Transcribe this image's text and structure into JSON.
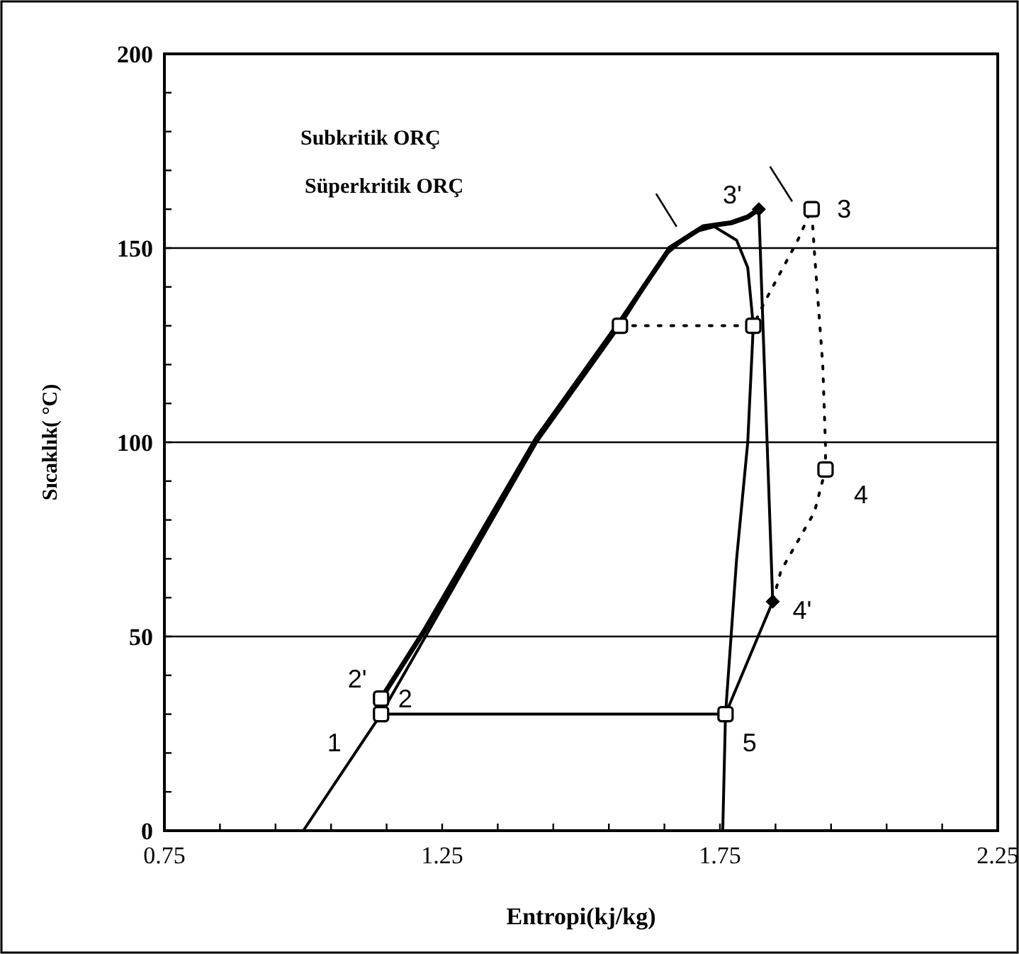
{
  "chart_data": {
    "type": "line",
    "xlabel": "Entropi(kj/kg)",
    "ylabel": "Sıcaklık( °C)",
    "xlim": [
      0.75,
      2.25
    ],
    "ylim": [
      0,
      200
    ],
    "xticks": [
      0.75,
      {
        "value": 0.85,
        "label": null
      },
      {
        "value": 0.95,
        "label": null
      },
      {
        "value": 1.05,
        "label": null
      },
      {
        "value": 1.15,
        "label": null
      },
      1.25,
      {
        "value": 1.35,
        "label": null
      },
      {
        "value": 1.45,
        "label": null
      },
      {
        "value": 1.55,
        "label": null
      },
      {
        "value": 1.65,
        "label": null
      },
      1.75,
      {
        "value": 1.85,
        "label": null
      },
      {
        "value": 1.95,
        "label": null
      },
      {
        "value": 2.05,
        "label": null
      },
      {
        "value": 2.15,
        "label": null
      },
      2.25
    ],
    "yticks": [
      0,
      {
        "value": 10,
        "label": null
      },
      {
        "value": 20,
        "label": null
      },
      {
        "value": 30,
        "label": null
      },
      {
        "value": 40,
        "label": null
      },
      50,
      {
        "value": 60,
        "label": null
      },
      {
        "value": 70,
        "label": null
      },
      {
        "value": 80,
        "label": null
      },
      {
        "value": 90,
        "label": null
      },
      100,
      {
        "value": 110,
        "label": null
      },
      {
        "value": 120,
        "label": null
      },
      {
        "value": 130,
        "label": null
      },
      {
        "value": 140,
        "label": null
      },
      150,
      {
        "value": 160,
        "label": null
      },
      {
        "value": 170,
        "label": null
      },
      {
        "value": 180,
        "label": null
      },
      {
        "value": 190,
        "label": null
      },
      200
    ],
    "grid": "y",
    "series": [
      {
        "color": "#000000",
        "line_style": "solid",
        "x": [
          1.0,
          1.14,
          1.22,
          1.42,
          1.57,
          1.65,
          1.7,
          1.74,
          1.78,
          1.8,
          1.81,
          1.8,
          1.78,
          1.76,
          1.755
        ],
        "values": [
          0,
          30,
          50,
          100,
          130,
          148,
          154,
          155.5,
          152,
          145,
          130,
          100,
          70,
          30,
          0
        ]
      },
      {
        "color": "#000000",
        "line_style": "solid",
        "x": [
          1.14,
          1.22,
          1.42,
          1.57,
          1.66,
          1.72,
          1.77,
          1.8,
          1.82
        ],
        "values": [
          34,
          52,
          101,
          131,
          150,
          155.5,
          156.5,
          158,
          160
        ]
      },
      {
        "color": "#000000",
        "line_style": "solid",
        "x": [
          1.82,
          1.845,
          1.76,
          1.14,
          1.14
        ],
        "values": [
          160,
          59,
          30,
          30,
          34
        ]
      },
      {
        "color": "#000000",
        "line_style": "dotted",
        "x": [
          1.57,
          1.81,
          1.83,
          1.89,
          1.915,
          1.92,
          1.935,
          1.94,
          1.94,
          1.92,
          1.86,
          1.845
        ],
        "values": [
          130,
          130,
          136,
          152,
          160,
          149,
          120,
          99,
          93,
          82,
          67,
          59
        ]
      },
      {
        "type": "scatter",
        "color": "#000000",
        "marker": "square",
        "x": [
          1.14,
          1.14,
          1.57,
          1.81,
          1.915,
          1.94,
          1.76
        ],
        "values": [
          30,
          34,
          130,
          130,
          160,
          93,
          30
        ]
      },
      {
        "type": "scatter",
        "color": "#000000",
        "marker": "diamond",
        "x": [
          1.82,
          1.845
        ],
        "values": [
          160,
          59
        ]
      }
    ],
    "annotations": [
      "Subkritik ORÇ",
      "Süperkritik ORÇ",
      {
        "text": "1",
        "x": 1.14,
        "y": 30
      },
      {
        "text": "2",
        "x": 1.14,
        "y": 34
      },
      {
        "text": "2'",
        "x": 1.14,
        "y": 34
      },
      {
        "text": "3",
        "x": 1.915,
        "y": 160
      },
      {
        "text": "3'",
        "x": 1.82,
        "y": 160
      },
      {
        "text": "4",
        "x": 1.94,
        "y": 93
      },
      {
        "text": "4'",
        "x": 1.845,
        "y": 59
      },
      {
        "text": "5",
        "x": 1.76,
        "y": 30
      }
    ]
  }
}
